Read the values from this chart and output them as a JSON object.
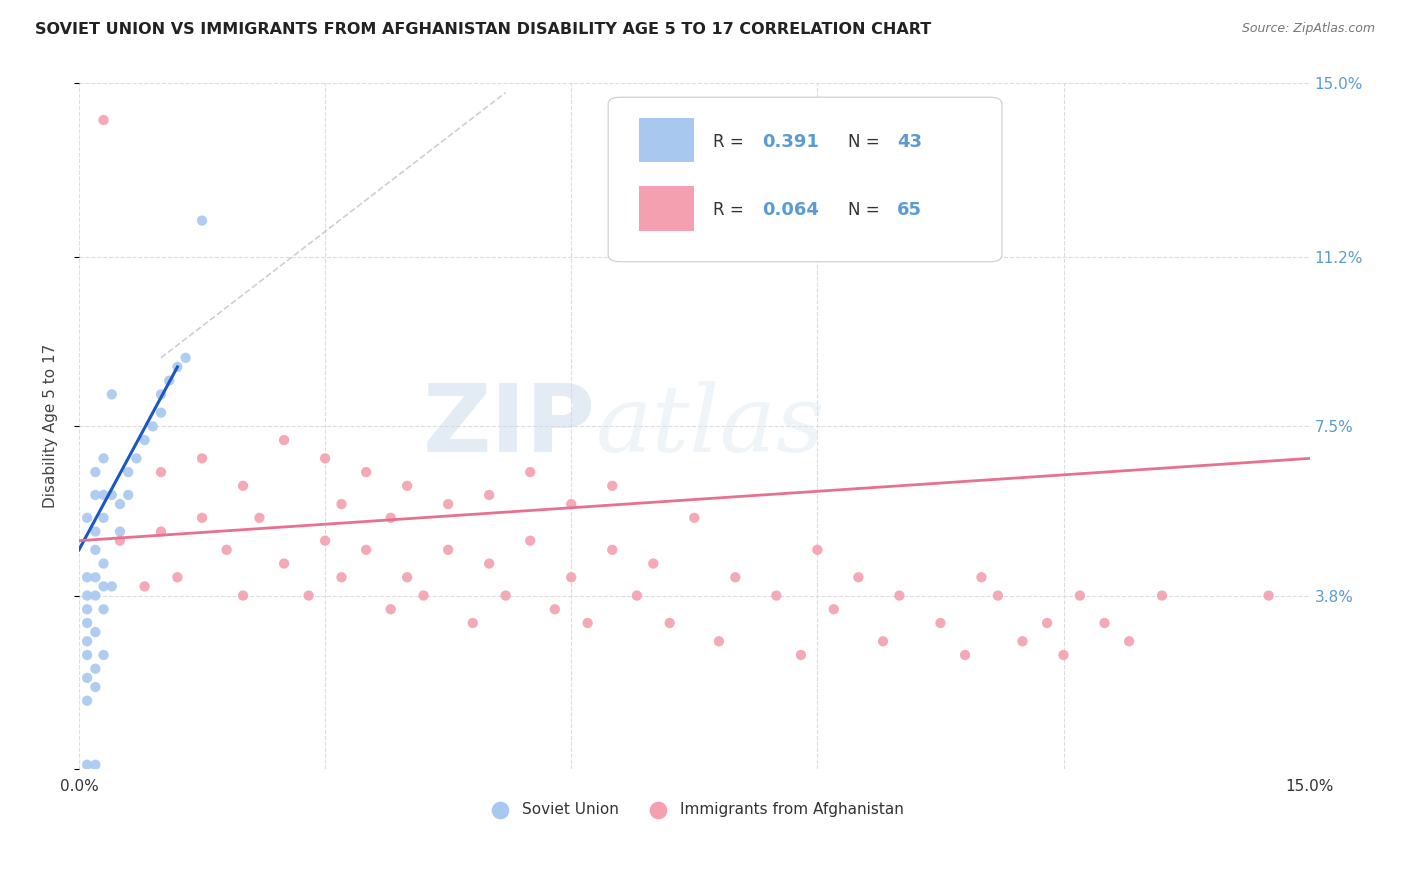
{
  "title": "SOVIET UNION VS IMMIGRANTS FROM AFGHANISTAN DISABILITY AGE 5 TO 17 CORRELATION CHART",
  "source": "Source: ZipAtlas.com",
  "ylabel": "Disability Age 5 to 17",
  "xlim": [
    0.0,
    0.15
  ],
  "ylim": [
    0.0,
    0.15
  ],
  "legend_R1": "0.391",
  "legend_N1": "43",
  "legend_R2": "0.064",
  "legend_N2": "65",
  "soviet_color": "#a8c8f0",
  "afghanistan_color": "#f4a0b0",
  "soviet_line_color": "#1a56c4",
  "afghanistan_line_color": "#e87090",
  "dash_color": "#bbbbbb",
  "watermark_zip": "ZIP",
  "watermark_atlas": "atlas",
  "grid_color": "#dddddd",
  "right_axis_color": "#5b9bd5",
  "soviet_points_x": [
    0.001,
    0.001,
    0.001,
    0.001,
    0.001,
    0.001,
    0.001,
    0.001,
    0.001,
    0.001,
    0.002,
    0.002,
    0.002,
    0.002,
    0.002,
    0.002,
    0.002,
    0.002,
    0.002,
    0.002,
    0.003,
    0.003,
    0.003,
    0.003,
    0.003,
    0.003,
    0.003,
    0.004,
    0.004,
    0.004,
    0.005,
    0.005,
    0.006,
    0.006,
    0.007,
    0.008,
    0.009,
    0.01,
    0.01,
    0.011,
    0.012,
    0.013,
    0.015
  ],
  "soviet_points_y": [
    0.001,
    0.015,
    0.02,
    0.025,
    0.028,
    0.032,
    0.035,
    0.038,
    0.042,
    0.055,
    0.001,
    0.018,
    0.022,
    0.03,
    0.038,
    0.042,
    0.048,
    0.052,
    0.06,
    0.065,
    0.025,
    0.035,
    0.04,
    0.045,
    0.055,
    0.06,
    0.068,
    0.04,
    0.06,
    0.082,
    0.052,
    0.058,
    0.06,
    0.065,
    0.068,
    0.072,
    0.075,
    0.078,
    0.082,
    0.085,
    0.088,
    0.09,
    0.12
  ],
  "afghanistan_points_x": [
    0.003,
    0.005,
    0.008,
    0.01,
    0.01,
    0.012,
    0.015,
    0.015,
    0.018,
    0.02,
    0.02,
    0.022,
    0.025,
    0.025,
    0.028,
    0.03,
    0.03,
    0.032,
    0.032,
    0.035,
    0.035,
    0.038,
    0.038,
    0.04,
    0.04,
    0.042,
    0.045,
    0.045,
    0.048,
    0.05,
    0.05,
    0.052,
    0.055,
    0.055,
    0.058,
    0.06,
    0.06,
    0.062,
    0.065,
    0.065,
    0.068,
    0.07,
    0.072,
    0.075,
    0.078,
    0.08,
    0.085,
    0.088,
    0.09,
    0.092,
    0.095,
    0.098,
    0.1,
    0.105,
    0.108,
    0.11,
    0.112,
    0.115,
    0.118,
    0.12,
    0.122,
    0.125,
    0.128,
    0.132,
    0.145
  ],
  "afghanistan_points_y": [
    0.142,
    0.05,
    0.04,
    0.052,
    0.065,
    0.042,
    0.055,
    0.068,
    0.048,
    0.038,
    0.062,
    0.055,
    0.045,
    0.072,
    0.038,
    0.05,
    0.068,
    0.042,
    0.058,
    0.048,
    0.065,
    0.035,
    0.055,
    0.042,
    0.062,
    0.038,
    0.048,
    0.058,
    0.032,
    0.045,
    0.06,
    0.038,
    0.05,
    0.065,
    0.035,
    0.042,
    0.058,
    0.032,
    0.048,
    0.062,
    0.038,
    0.045,
    0.032,
    0.055,
    0.028,
    0.042,
    0.038,
    0.025,
    0.048,
    0.035,
    0.042,
    0.028,
    0.038,
    0.032,
    0.025,
    0.042,
    0.038,
    0.028,
    0.032,
    0.025,
    0.038,
    0.032,
    0.028,
    0.038,
    0.038
  ]
}
